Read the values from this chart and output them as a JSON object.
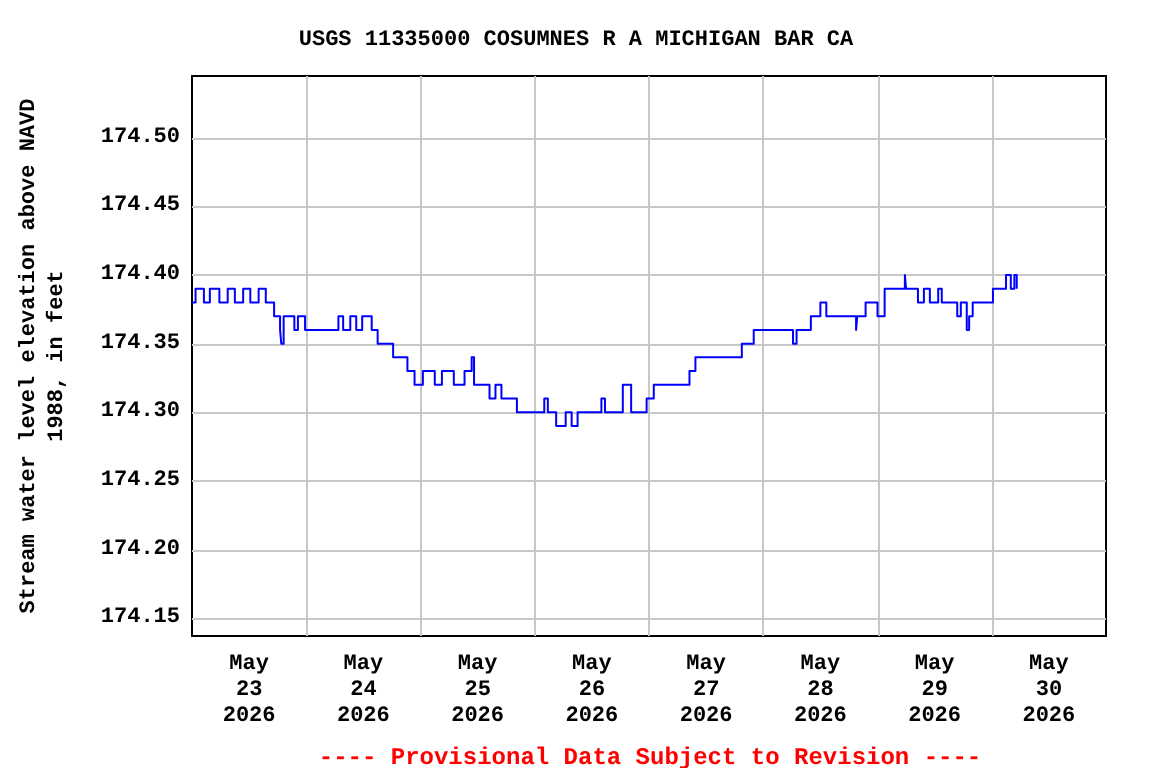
{
  "chart_data": {
    "type": "step",
    "title": "USGS 11335000 COSUMNES R A MICHIGAN BAR CA",
    "ylabel": "Stream water level elevation above NAVD 1988, in feet",
    "annotations": [
      "---- Provisional Data Subject to Revision ----"
    ],
    "x": [
      "2026-05-23T00:00",
      "2026-05-23T00:45",
      "2026-05-23T02:30",
      "2026-05-23T03:45",
      "2026-05-23T05:45",
      "2026-05-23T07:30",
      "2026-05-23T09:00",
      "2026-05-23T10:45",
      "2026-05-23T12:15",
      "2026-05-23T14:00",
      "2026-05-23T15:30",
      "2026-05-23T17:15",
      "2026-05-23T18:30",
      "2026-05-23T18:45",
      "2026-05-23T19:15",
      "2026-05-23T21:30",
      "2026-05-23T22:15",
      "2026-05-23T23:45",
      "2026-05-24T06:45",
      "2026-05-24T07:45",
      "2026-05-24T09:15",
      "2026-05-24T10:30",
      "2026-05-24T11:45",
      "2026-05-24T13:45",
      "2026-05-24T15:00",
      "2026-05-24T18:15",
      "2026-05-24T21:15",
      "2026-05-24T22:45",
      "2026-05-25T00:30",
      "2026-05-25T03:00",
      "2026-05-25T04:30",
      "2026-05-25T07:00",
      "2026-05-25T09:15",
      "2026-05-25T10:45",
      "2026-05-25T11:15",
      "2026-05-25T14:30",
      "2026-05-25T15:45",
      "2026-05-25T17:00",
      "2026-05-25T20:15",
      "2026-05-26T02:00",
      "2026-05-26T02:45",
      "2026-05-26T04:30",
      "2026-05-26T06:30",
      "2026-05-26T07:45",
      "2026-05-26T09:00",
      "2026-05-26T14:00",
      "2026-05-26T14:45",
      "2026-05-26T18:30",
      "2026-05-26T20:15",
      "2026-05-26T23:30",
      "2026-05-27T01:00",
      "2026-05-27T08:30",
      "2026-05-27T09:45",
      "2026-05-27T19:30",
      "2026-05-27T22:00",
      "2026-05-28T06:15",
      "2026-05-28T07:00",
      "2026-05-28T10:00",
      "2026-05-28T12:00",
      "2026-05-28T13:15",
      "2026-05-28T19:30",
      "2026-05-28T19:45",
      "2026-05-28T21:30",
      "2026-05-29T00:00",
      "2026-05-29T01:30",
      "2026-05-29T05:45",
      "2026-05-29T06:00",
      "2026-05-29T08:30",
      "2026-05-29T09:45",
      "2026-05-29T11:00",
      "2026-05-29T12:45",
      "2026-05-29T13:30",
      "2026-05-29T16:45",
      "2026-05-29T17:30",
      "2026-05-29T18:45",
      "2026-05-29T19:15",
      "2026-05-29T20:00",
      "2026-05-30T00:15",
      "2026-05-30T03:00",
      "2026-05-30T04:00",
      "2026-05-30T04:45",
      "2026-05-30T05:15"
    ],
    "series": [
      {
        "color": "#0000ff",
        "values": [
          174.38,
          174.39,
          174.38,
          174.39,
          174.38,
          174.39,
          174.38,
          174.39,
          174.38,
          174.39,
          174.38,
          174.37,
          174.36,
          174.35,
          174.37,
          174.36,
          174.37,
          174.36,
          174.37,
          174.36,
          174.37,
          174.36,
          174.37,
          174.36,
          174.35,
          174.34,
          174.33,
          174.32,
          174.33,
          174.32,
          174.33,
          174.32,
          174.33,
          174.34,
          174.32,
          174.31,
          174.32,
          174.31,
          174.3,
          174.31,
          174.3,
          174.29,
          174.3,
          174.29,
          174.3,
          174.31,
          174.3,
          174.32,
          174.3,
          174.31,
          174.32,
          174.33,
          174.34,
          174.35,
          174.36,
          174.35,
          174.36,
          174.37,
          174.38,
          174.37,
          174.36,
          174.37,
          174.38,
          174.37,
          174.39,
          174.4,
          174.39,
          174.38,
          174.39,
          174.38,
          174.39,
          174.38,
          174.37,
          174.38,
          174.36,
          174.37,
          174.38,
          174.39,
          174.4,
          174.39,
          174.4,
          174.39
        ]
      }
    ],
    "xlim": [
      "2026-05-23T00:00",
      "2026-05-31T00:00"
    ],
    "xticks": [
      {
        "value": "2026-05-23T12:00",
        "label": "May\n23\n2026"
      },
      {
        "value": "2026-05-24T12:00",
        "label": "May\n24\n2026"
      },
      {
        "value": "2026-05-25T12:00",
        "label": "May\n25\n2026"
      },
      {
        "value": "2026-05-26T12:00",
        "label": "May\n26\n2026"
      },
      {
        "value": "2026-05-27T12:00",
        "label": "May\n27\n2026"
      },
      {
        "value": "2026-05-28T12:00",
        "label": "May\n28\n2026"
      },
      {
        "value": "2026-05-29T12:00",
        "label": "May\n29\n2026"
      },
      {
        "value": "2026-05-30T12:00",
        "label": "May\n30\n2026"
      },
      {
        "value": "2026-05-24T00:00",
        "label": null
      },
      {
        "value": "2026-05-25T00:00",
        "label": null
      },
      {
        "value": "2026-05-26T00:00",
        "label": null
      },
      {
        "value": "2026-05-27T00:00",
        "label": null
      },
      {
        "value": "2026-05-28T00:00",
        "label": null
      },
      {
        "value": "2026-05-29T00:00",
        "label": null
      },
      {
        "value": "2026-05-30T00:00",
        "label": null
      }
    ],
    "ylim": [
      174.137,
      174.545
    ],
    "yticks": [
      {
        "value": 174.15,
        "label": "174.15"
      },
      {
        "value": 174.2,
        "label": "174.20"
      },
      {
        "value": 174.25,
        "label": "174.25"
      },
      {
        "value": 174.3,
        "label": "174.30"
      },
      {
        "value": 174.35,
        "label": "174.35"
      },
      {
        "value": 174.4,
        "label": "174.40"
      },
      {
        "value": 174.45,
        "label": "174.45"
      },
      {
        "value": 174.5,
        "label": "174.50"
      }
    ],
    "grid": true,
    "marker": "none",
    "line_style": "solid"
  }
}
